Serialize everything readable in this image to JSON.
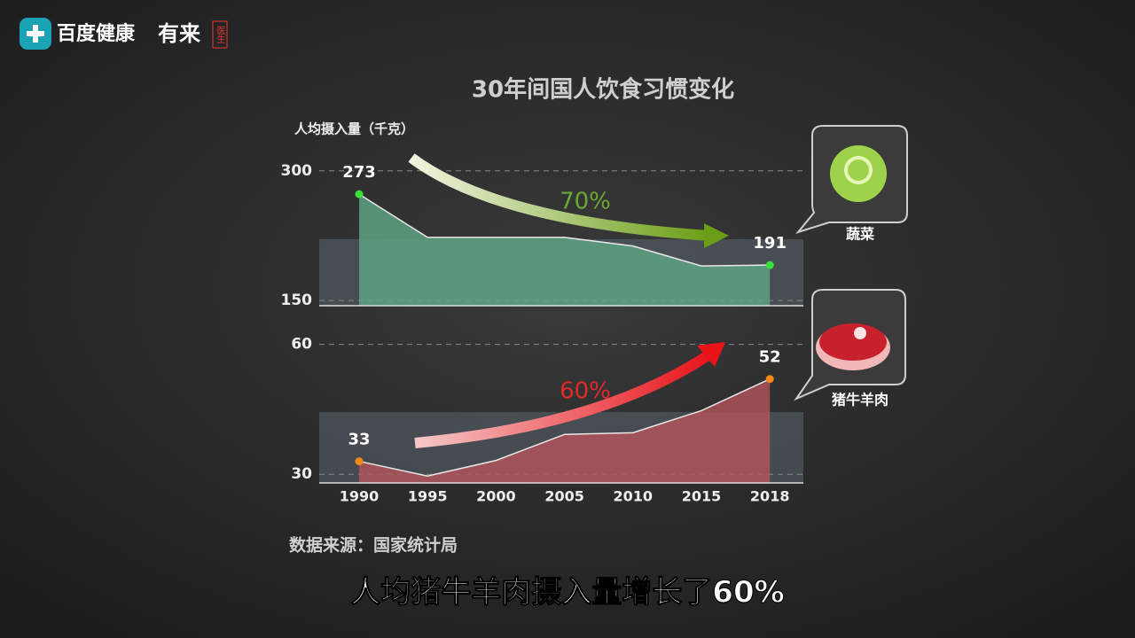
{
  "header": {
    "logo": "百度健康",
    "brand": "有来",
    "badge": "医生"
  },
  "title": "30年间国人饮食习惯变化",
  "y_label": "人均摄入量（千克）",
  "chart_data": [
    {
      "type": "area",
      "values": [
        273,
        223,
        223,
        223,
        213,
        190,
        191
      ],
      "color": "#5fa886",
      "point_color": "#39e03a",
      "ylim": [
        144,
        310
      ],
      "yticks": [
        150,
        300
      ],
      "grid": true,
      "annotation": "70%",
      "annotation_color": "#6aa832",
      "label": "蔬菜"
    },
    {
      "type": "area",
      "categories": [
        "1990",
        "1995",
        "2000",
        "2005",
        "2010",
        "2015",
        "2018"
      ],
      "values": [
        33,
        29.6,
        33.2,
        39.2,
        39.6,
        44.7,
        52
      ],
      "color": "#b5545c",
      "point_color": "#f08a1a",
      "ylim": [
        28,
        63
      ],
      "yticks": [
        30,
        60
      ],
      "grid": true,
      "annotation": "60%",
      "annotation_color": "#e02a2a",
      "label": "猪牛羊肉"
    }
  ],
  "source": "数据来源：国家统计局",
  "caption": "人均猪牛羊肉摄入量增长了60%"
}
